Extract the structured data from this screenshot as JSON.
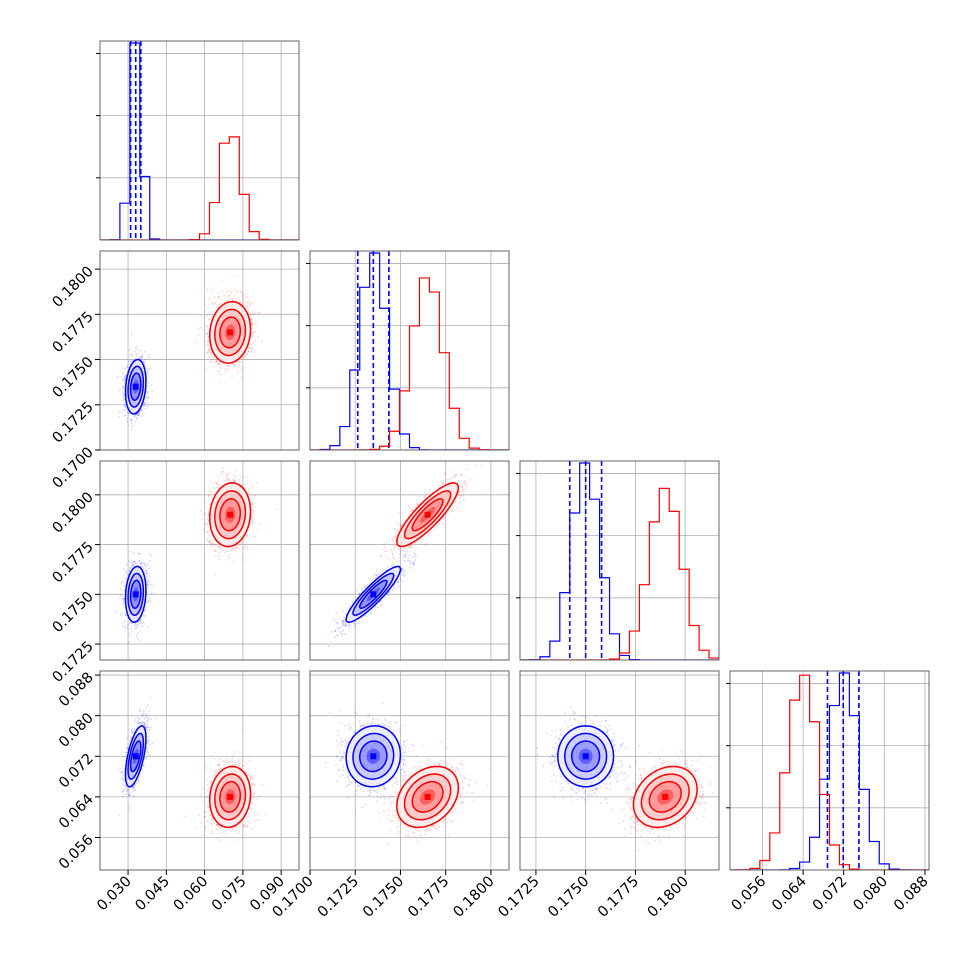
{
  "colors": {
    "series_a": "#0000ff",
    "series_b": "#ff0000",
    "grid": "#b0b0b0",
    "frame": "#000000"
  },
  "chart_data": {
    "type": "corner",
    "parameters": 4,
    "grid": true,
    "axes": [
      {
        "range": [
          0.019,
          0.097
        ],
        "ticks": [
          0.03,
          0.045,
          0.06,
          0.075,
          0.09
        ],
        "tick_labels": [
          "0.030",
          "0.045",
          "0.060",
          "0.075",
          "0.090"
        ]
      },
      {
        "range": [
          0.17,
          0.181
        ],
        "ticks": [
          0.17,
          0.1725,
          0.175,
          0.1775,
          0.18
        ],
        "tick_labels": [
          "0.1700",
          "0.1725",
          "0.1750",
          "0.1775",
          "0.1800"
        ]
      },
      {
        "range": [
          0.1717,
          0.1817
        ],
        "ticks": [
          0.1725,
          0.175,
          0.1775,
          0.18
        ],
        "tick_labels": [
          "0.1725",
          "0.1750",
          "0.1775",
          "0.1800"
        ]
      },
      {
        "range": [
          0.0496,
          0.0888
        ],
        "ticks": [
          0.056,
          0.064,
          0.072,
          0.08,
          0.088
        ],
        "tick_labels": [
          "0.056",
          "0.064",
          "0.072",
          "0.080",
          "0.088"
        ]
      }
    ],
    "row_tick_labels": [
      null,
      [
        "0.1700",
        "0.1725",
        "0.1750",
        "0.1775",
        "0.1800"
      ],
      [
        "0.1725",
        "0.1750",
        "0.1775",
        "0.1800"
      ],
      [
        "0.056",
        "0.064",
        "0.072",
        "0.080",
        "0.088"
      ]
    ],
    "series": [
      {
        "color": "#0000ff",
        "mean": [
          0.033,
          0.1735,
          0.175,
          0.072
        ],
        "std": [
          0.002,
          0.00075,
          0.0007,
          0.003
        ],
        "corr": [
          [
            1,
            0.2,
            0.15,
            0.6
          ],
          [
            0.2,
            1,
            0.9,
            0.05
          ],
          [
            0.15,
            0.9,
            1,
            0.0
          ],
          [
            0.6,
            0.05,
            0.0,
            1
          ]
        ],
        "quantiles_marked": true,
        "quantile_lines": [
          [
            0.031,
            0.033,
            0.035
          ],
          [
            0.17264,
            0.1735,
            0.17436
          ],
          [
            0.1742,
            0.175,
            0.1758
          ],
          [
            0.0688,
            0.0719,
            0.075
          ]
        ]
      },
      {
        "color": "#ff0000",
        "mean": [
          0.07,
          0.1765,
          0.179,
          0.064
        ],
        "std": [
          0.004,
          0.00085,
          0.0008,
          0.003
        ],
        "corr": [
          [
            1,
            0.1,
            0.1,
            0.1
          ],
          [
            0.1,
            1,
            0.85,
            0.3
          ],
          [
            0.1,
            0.85,
            1,
            0.25
          ],
          [
            0.1,
            0.3,
            0.25,
            1
          ]
        ],
        "quantiles_marked": false,
        "quantile_lines": []
      }
    ]
  }
}
